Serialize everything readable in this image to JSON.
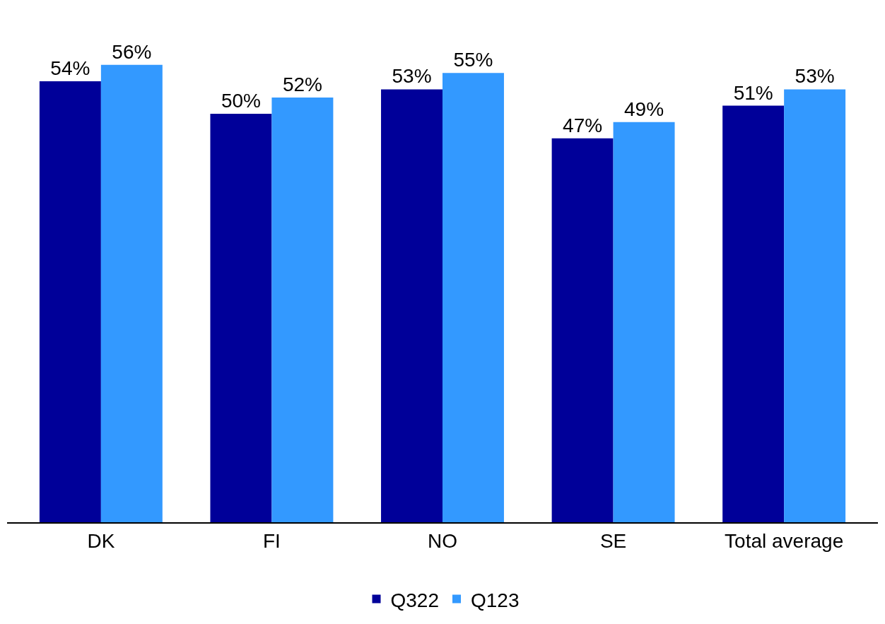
{
  "chart_data": {
    "type": "bar",
    "categories": [
      "DK",
      "FI",
      "NO",
      "SE",
      "Total average"
    ],
    "series": [
      {
        "name": "Q322",
        "color": "#000099",
        "values": [
          54,
          50,
          53,
          47,
          51
        ],
        "value_labels": [
          "54%",
          "50%",
          "53%",
          "47%",
          "51%"
        ]
      },
      {
        "name": "Q123",
        "color": "#3399ff",
        "values": [
          56,
          52,
          55,
          49,
          53
        ],
        "value_labels": [
          "56%",
          "52%",
          "55%",
          "49%",
          "53%"
        ]
      }
    ],
    "legend": "bottom"
  }
}
